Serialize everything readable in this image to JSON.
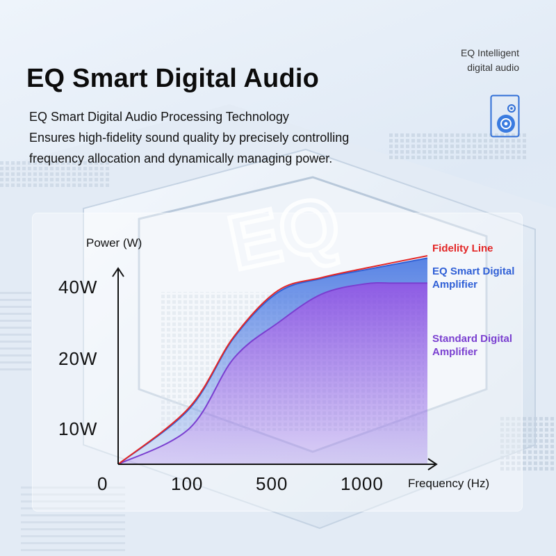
{
  "header": {
    "title": "EQ Smart Digital Audio",
    "description_lines": [
      "EQ Smart Digital Audio Processing Technology",
      "Ensures high-fidelity sound quality by precisely controlling",
      "frequency allocation and dynamically managing power."
    ]
  },
  "badge": {
    "line1": "EQ Intelligent",
    "line2": "digital audio",
    "icon": "speaker-icon"
  },
  "background": {
    "chip_label": "EQ"
  },
  "chart_data": {
    "type": "line",
    "xlabel": "Frequency (Hz)",
    "ylabel": "Power (W)",
    "x_ticks": [
      "0",
      "100",
      "500",
      "1000"
    ],
    "y_ticks": [
      "10W",
      "20W",
      "40W"
    ],
    "grid": false,
    "legend_placement": "right",
    "series": [
      {
        "name": "Fidelity Line",
        "color": "#e32626",
        "points": [
          [
            0,
            0
          ],
          [
            100,
            13
          ],
          [
            300,
            26
          ],
          [
            500,
            39
          ],
          [
            750,
            52
          ],
          [
            1000,
            64
          ],
          [
            1300,
            80
          ]
        ]
      },
      {
        "name": "EQ Smart Digital Amplifier",
        "color": "#2f5fd6",
        "fill": "#5b86e6",
        "points": [
          [
            0,
            0
          ],
          [
            100,
            12.8
          ],
          [
            300,
            25.7
          ],
          [
            500,
            38.5
          ],
          [
            750,
            51
          ],
          [
            1000,
            62
          ],
          [
            1300,
            77
          ]
        ]
      },
      {
        "name": "Standard Digital Amplifier",
        "color": "#7a3fd0",
        "fill": "#8a5be6",
        "points": [
          [
            0,
            0
          ],
          [
            100,
            10
          ],
          [
            300,
            20
          ],
          [
            500,
            30
          ],
          [
            750,
            38
          ],
          [
            1000,
            44
          ],
          [
            1150,
            45
          ],
          [
            1300,
            45
          ]
        ]
      }
    ]
  }
}
